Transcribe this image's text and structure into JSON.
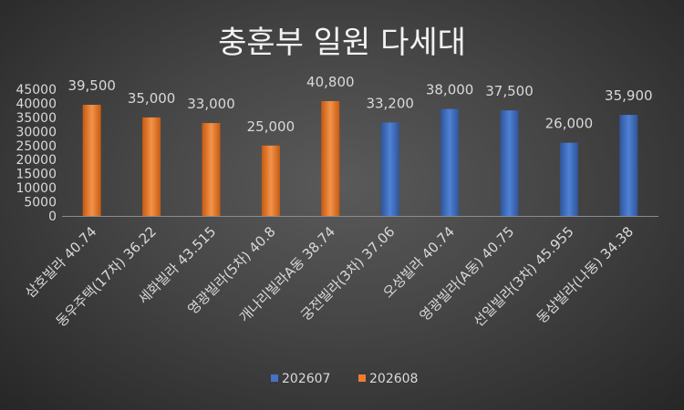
{
  "chart_data": {
    "type": "bar",
    "title": "충훈부 일원 다세대",
    "xlabel": "",
    "ylabel": "",
    "ylim": [
      0,
      45000
    ],
    "yticks": [
      0,
      5000,
      10000,
      15000,
      20000,
      25000,
      30000,
      35000,
      40000,
      45000
    ],
    "grid": false,
    "legend_position": "bottom",
    "categories": [
      "삼호빌라 40.74",
      "동우주택(17차) 36.22",
      "세화빌라 43.515",
      "영광빌라(5차) 40.8",
      "개나리빌라A동 38.74",
      "궁전빌라(3차) 37.06",
      "오성빌라 40.74",
      "영광빌라(A동) 40.75",
      "선일빌라(3차) 45.955",
      "동삼빌라(나동) 34.38"
    ],
    "series": [
      {
        "name": "202607",
        "color": "#4472C4",
        "values": [
          null,
          null,
          null,
          null,
          null,
          33200,
          38000,
          37500,
          26000,
          35900
        ],
        "labels": [
          "",
          "",
          "",
          "",
          "",
          "33,200",
          "38,000",
          "37,500",
          "26,000",
          "35,900"
        ]
      },
      {
        "name": "202608",
        "color": "#ED7D31",
        "values": [
          39500,
          35000,
          33000,
          25000,
          40800,
          null,
          null,
          null,
          null,
          null
        ],
        "labels": [
          "39,500",
          "35,000",
          "33,000",
          "25,000",
          "40,800",
          "",
          "",
          "",
          "",
          ""
        ]
      }
    ]
  }
}
